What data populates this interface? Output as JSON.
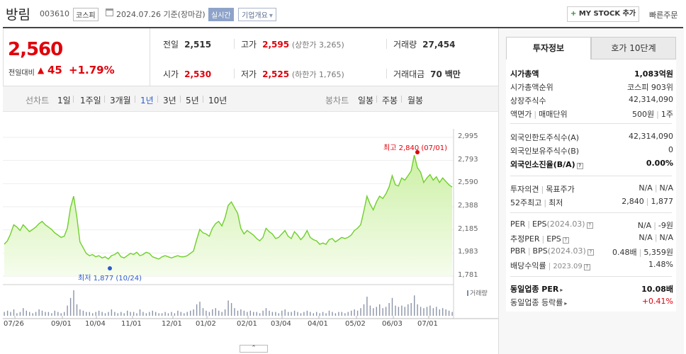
{
  "header": {
    "name": "방림",
    "code": "003610",
    "market": "코스피",
    "date": "2024.07.26 기준(장마감)",
    "realtime": "실시간",
    "company_overview": "기업개요",
    "mystock_plus": "+",
    "mystock": "MY STOCK 추가",
    "quick_order": "빠른주문"
  },
  "price": {
    "current": "2,560",
    "change_label": "전일대비",
    "change": "45",
    "change_pct": "+1.79%"
  },
  "stats": {
    "prev_label": "전일",
    "prev": "2,515",
    "high_label": "고가",
    "high": "2,595",
    "upper": "(상한가 3,265)",
    "volume_label": "거래량",
    "volume": "27,454",
    "open_label": "시가",
    "open": "2,530",
    "low_label": "저가",
    "low": "2,525",
    "lower": "(하한가 1,765)",
    "amount_label": "거래대금",
    "amount": "70",
    "amount_unit": "백만"
  },
  "tabs": {
    "line_label": "선차트",
    "periods": [
      "1일",
      "1주일",
      "3개월",
      "1년",
      "3년",
      "5년",
      "10년"
    ],
    "active": "1년",
    "candle_label": "봉차트",
    "candles": [
      "일봉",
      "주봉",
      "월봉"
    ]
  },
  "chart_data": {
    "type": "area",
    "yticks": [
      "2,995",
      "2,793",
      "2,590",
      "2,388",
      "2,185",
      "1,983",
      "1,781"
    ],
    "ylim": [
      1781,
      2995
    ],
    "xticks": [
      "07/26",
      "09/01",
      "10/04",
      "11/01",
      "12/01",
      "01/02",
      "02/01",
      "03/04",
      "04/01",
      "05/02",
      "06/03",
      "07/01"
    ],
    "high_label": "최고 2,840 (07/01)",
    "low_label": "최저 1,877 (10/24)",
    "high": 2840,
    "low": 1877,
    "volume_label": "거래량",
    "prices": [
      2060,
      2090,
      2150,
      2230,
      2210,
      2180,
      2230,
      2200,
      2170,
      2190,
      2210,
      2240,
      2260,
      2230,
      2210,
      2190,
      2160,
      2140,
      2120,
      2130,
      2200,
      2380,
      2480,
      2300,
      2080,
      2030,
      1980,
      1960,
      1970,
      1950,
      1960,
      1940,
      1950,
      1930,
      1960,
      1970,
      1990,
      1950,
      1940,
      1960,
      1980,
      1970,
      1990,
      1960,
      1970,
      1990,
      1980,
      1950,
      1940,
      1930,
      1950,
      1960,
      1950,
      1940,
      1950,
      1960,
      1950,
      1950,
      1960,
      1980,
      2000,
      2100,
      2190,
      2160,
      2150,
      2130,
      2200,
      2240,
      2260,
      2220,
      2290,
      2400,
      2430,
      2380,
      2330,
      2200,
      2150,
      2180,
      2160,
      2140,
      2110,
      2090,
      2120,
      2200,
      2170,
      2150,
      2110,
      2120,
      2150,
      2180,
      2130,
      2110,
      2170,
      2140,
      2100,
      2130,
      2180,
      2120,
      2100,
      2090,
      2060,
      2070,
      2060,
      2100,
      2110,
      2080,
      2100,
      2120,
      2110,
      2120,
      2140,
      2180,
      2200,
      2230,
      2350,
      2480,
      2410,
      2360,
      2430,
      2480,
      2460,
      2500,
      2560,
      2660,
      2580,
      2570,
      2640,
      2620,
      2660,
      2700,
      2840,
      2730,
      2690,
      2600,
      2640,
      2670,
      2620,
      2650,
      2600,
      2640,
      2610,
      2580,
      2560
    ],
    "volumes": [
      3,
      4,
      3,
      5,
      2,
      3,
      6,
      4,
      3,
      2,
      3,
      5,
      4,
      3,
      3,
      2,
      4,
      3,
      2,
      3,
      8,
      14,
      20,
      9,
      5,
      4,
      3,
      3,
      2,
      3,
      4,
      3,
      2,
      3,
      5,
      3,
      2,
      3,
      2,
      4,
      3,
      3,
      2,
      5,
      3,
      2,
      3,
      4,
      3,
      2,
      2,
      3,
      2,
      3,
      2,
      4,
      3,
      2,
      3,
      4,
      5,
      9,
      11,
      6,
      4,
      3,
      5,
      6,
      4,
      3,
      5,
      12,
      10,
      6,
      4,
      5,
      4,
      3,
      4,
      3,
      3,
      2,
      4,
      6,
      4,
      3,
      3,
      2,
      4,
      5,
      3,
      3,
      4,
      3,
      2,
      3,
      4,
      3,
      2,
      3,
      2,
      3,
      2,
      4,
      3,
      2,
      3,
      3,
      2,
      3,
      4,
      5,
      4,
      6,
      9,
      15,
      8,
      6,
      7,
      9,
      6,
      7,
      10,
      14,
      8,
      7,
      8,
      7,
      9,
      10,
      16,
      9,
      7,
      6,
      7,
      8,
      6,
      7,
      5,
      6,
      5,
      4,
      3
    ]
  },
  "right": {
    "tab_invest": "투자정보",
    "tab_hoga": "호가 10단계",
    "market_cap_label": "시가총액",
    "market_cap": "1,083억원",
    "rank_label": "시가총액순위",
    "rank": "코스피 903위",
    "shares_label": "상장주식수",
    "shares": "42,314,090",
    "par_label": "액면가",
    "unit_label": "매매단위",
    "par": "500원",
    "unit": "1주",
    "foreign_limit_label": "외국인한도주식수(A)",
    "foreign_limit": "42,314,090",
    "foreign_hold_label": "외국인보유주식수(B)",
    "foreign_hold": "0",
    "foreign_ratio_label": "외국인소진율(B/A)",
    "foreign_ratio": "0.00%",
    "opinion_label": "투자의견",
    "target_label": "목표주가",
    "opinion": "N/A",
    "target": "N/A",
    "w52_label": "52주최고",
    "w52_low_label": "최저",
    "w52_high": "2,840",
    "w52_low": "1,877",
    "per_label": "PER",
    "eps_label": "EPS",
    "eps_period": "(2024.03)",
    "per": "N/A",
    "eps": "-9원",
    "est_per_label": "추정PER",
    "est_eps_label": "EPS",
    "est_per": "N/A",
    "est_eps": "N/A",
    "pbr_label": "PBR",
    "bps_label": "BPS",
    "bps_period": "(2024.03)",
    "pbr": "0.48배",
    "bps": "5,359원",
    "div_label": "배당수익률",
    "div_period": "2023.09",
    "div": "1.48%",
    "sector_per_label": "동일업종 PER",
    "sector_per": "10.08배",
    "sector_rate_label": "동일업종 등락률",
    "sector_rate": "+0.41%"
  }
}
